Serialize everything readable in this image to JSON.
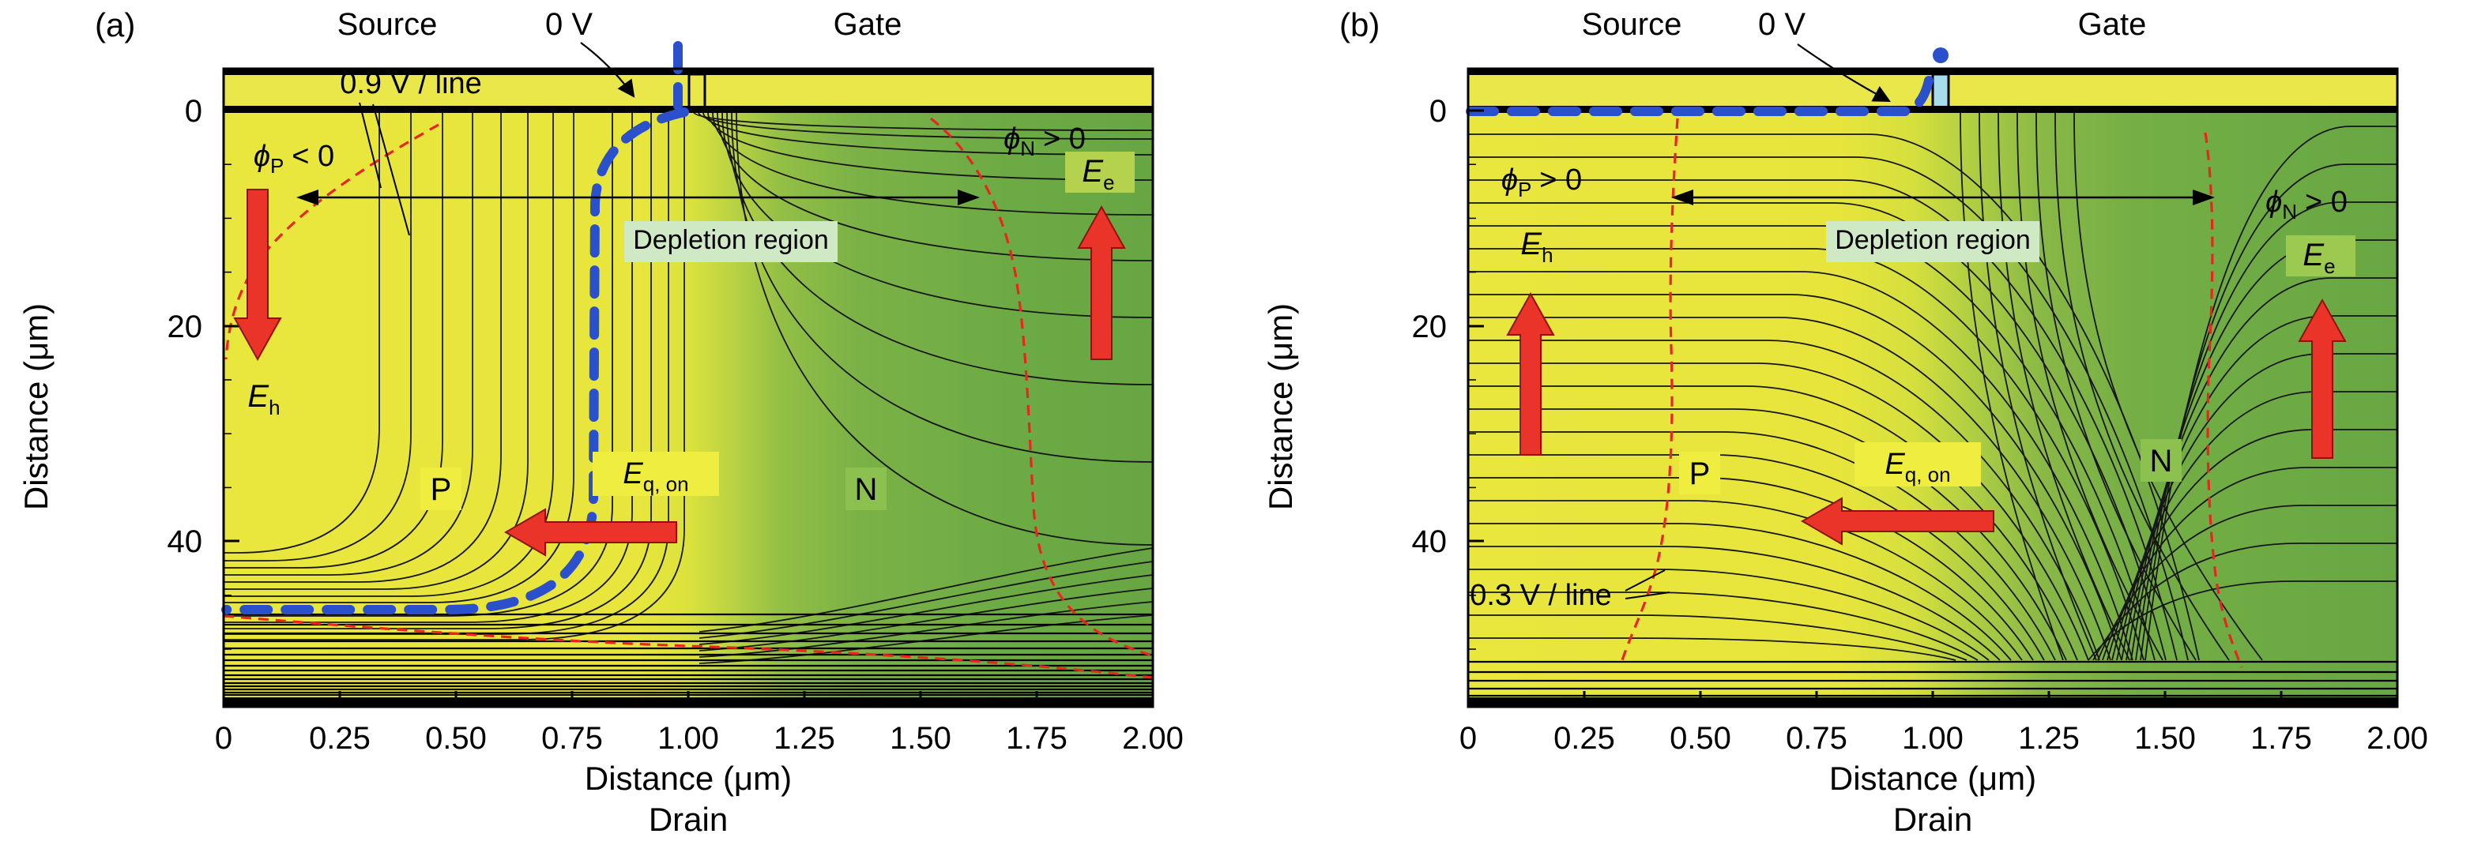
{
  "colors": {
    "p_region_yellow": "#e9e73e",
    "n_region_green": "#68a743",
    "contour_black": "#161616",
    "depletion_boundary_red": "#e8251f",
    "zero_volt_blue": "#2b50cc",
    "field_arrow_red": "#ea342a",
    "electrode_strip_yellow": "#eae74a",
    "gate_contact_cyan": "#a6dcec",
    "depletion_label_bg": "#cfe9c5",
    "yellow_label_bg": "#f0ed41",
    "green_label_bg": "#8cc150"
  },
  "panel_a": {
    "tag": "(a)",
    "electrodes": {
      "source": "Source",
      "zero_v": "0 V",
      "gate": "Gate",
      "drain": "Drain"
    },
    "axes": {
      "x_label": "Distance (μm)",
      "y_label": "Distance (μm)",
      "x_ticks": [
        "0",
        "0.25",
        "0.50",
        "0.75",
        "1.00",
        "1.25",
        "1.50",
        "1.75",
        "2.00"
      ],
      "y_ticks": [
        "0",
        "20",
        "40"
      ]
    },
    "annotations": {
      "contour_note": "0.9 V / line",
      "depletion": "Depletion region",
      "p_region": "P",
      "n_region": "N",
      "phi_p": {
        "sym": "ϕ",
        "sub": "P",
        "rel": "< 0"
      },
      "phi_n": {
        "sym": "ϕ",
        "sub": "N",
        "rel": "> 0"
      },
      "e_h": {
        "sym": "E",
        "sub": "h"
      },
      "e_e": {
        "sym": "E",
        "sub": "e"
      },
      "e_q": {
        "sym": "E",
        "sub": "q, on"
      }
    }
  },
  "panel_b": {
    "tag": "(b)",
    "electrodes": {
      "source": "Source",
      "zero_v": "0 V",
      "gate": "Gate",
      "drain": "Drain"
    },
    "axes": {
      "x_label": "Distance (μm)",
      "y_label": "Distance (μm)",
      "x_ticks": [
        "0",
        "0.25",
        "0.50",
        "0.75",
        "1.00",
        "1.25",
        "1.50",
        "1.75",
        "2.00"
      ],
      "y_ticks": [
        "0",
        "20",
        "40"
      ]
    },
    "annotations": {
      "contour_note": "0.3 V / line",
      "depletion": "Depletion region",
      "p_region": "P",
      "n_region": "N",
      "phi_p": {
        "sym": "ϕ",
        "sub": "P",
        "rel": "> 0"
      },
      "phi_n": {
        "sym": "ϕ",
        "sub": "N",
        "rel": "> 0"
      },
      "e_h": {
        "sym": "E",
        "sub": "h"
      },
      "e_e": {
        "sym": "E",
        "sub": "e"
      },
      "e_q": {
        "sym": "E",
        "sub": "q, on"
      }
    }
  },
  "chart_data": [
    {
      "type": "heatmap",
      "variant": "2D equipotential contour map of device cross-section",
      "panel": "(a)",
      "xlabel": "Distance (μm)",
      "ylabel": "Distance (μm)",
      "x_axis_bottom_label": "Drain",
      "xlim": [
        0,
        2.0
      ],
      "ylim_depth_um": [
        0,
        55
      ],
      "x_ticks": [
        0,
        0.25,
        0.5,
        0.75,
        1.0,
        1.25,
        1.5,
        1.75,
        2.0
      ],
      "y_ticks": [
        0,
        20,
        40
      ],
      "contour_interval": "0.9 V / line",
      "top_contacts": [
        {
          "name": "Source",
          "bias": "0 V",
          "x_range_um": [
            0,
            0.95
          ]
        },
        {
          "name": "Gate",
          "x_range_um": [
            1.0,
            2.0
          ]
        }
      ],
      "bottom_contact": "Drain",
      "regions": [
        {
          "name": "P",
          "side": "left",
          "fill": "yellow",
          "potential_note": "ϕP < 0"
        },
        {
          "name": "N",
          "side": "right",
          "fill": "green",
          "potential_note": "ϕN > 0"
        }
      ],
      "zero_volt_contour": "thick blue dashed line from the source/gate gap, running down near x ≈ 0.78 μm then bending left to the left edge at depth ≈ 46 μm",
      "depletion_region": "between red dashed boundaries spanning roughly x ≈ 0.1–1.7 μm near the surface (double-headed arrow)",
      "field_arrows": [
        {
          "label": "Eh",
          "direction": "down",
          "location": "left side, x ≈ 0.07 μm"
        },
        {
          "label": "Ee",
          "direction": "up",
          "location": "right side, x ≈ 1.88 μm"
        },
        {
          "label": "Eq, on",
          "direction": "left",
          "location": "channel, depth ≈ 39 μm"
        }
      ],
      "dense_contour_band": "closely spaced contours along the bottom drain junction, depth ≈ 47–55 μm"
    },
    {
      "type": "heatmap",
      "variant": "2D equipotential contour map of device cross-section",
      "panel": "(b)",
      "xlabel": "Distance (μm)",
      "ylabel": "Distance (μm)",
      "x_axis_bottom_label": "Drain",
      "xlim": [
        0,
        2.0
      ],
      "ylim_depth_um": [
        0,
        55
      ],
      "x_ticks": [
        0,
        0.25,
        0.5,
        0.75,
        1.0,
        1.25,
        1.5,
        1.75,
        2.0
      ],
      "y_ticks": [
        0,
        20,
        40
      ],
      "contour_interval": "0.3 V / line",
      "top_contacts": [
        {
          "name": "Source",
          "bias": "0 V",
          "x_range_um": [
            0,
            0.95
          ]
        },
        {
          "name": "Gate",
          "x_range_um": [
            1.0,
            2.0
          ]
        }
      ],
      "bottom_contact": "Drain",
      "regions": [
        {
          "name": "P",
          "side": "left",
          "fill": "yellow",
          "potential_note": "ϕP > 0"
        },
        {
          "name": "N",
          "side": "right",
          "fill": "green",
          "potential_note": "ϕN > 0"
        }
      ],
      "zero_volt_contour": "thick blue dashed line along the surface (y ≈ 0) from x = 0 to the cyan source/gate gap at x ≈ 1.0 μm",
      "depletion_region": "between near-vertical red dashed boundaries at x ≈ 0.45 μm and x ≈ 1.6 μm (double-headed arrow)",
      "field_arrows": [
        {
          "label": "Eh",
          "direction": "up",
          "location": "left side, x ≈ 0.13 μm"
        },
        {
          "label": "Ee",
          "direction": "up",
          "location": "right side, x ≈ 1.83 μm"
        },
        {
          "label": "Eq, on",
          "direction": "left",
          "location": "channel, depth ≈ 38 μm"
        }
      ],
      "dense_contour_band": "closely spaced contours along the bottom drain junction, depth ≈ 51–55 μm"
    }
  ]
}
